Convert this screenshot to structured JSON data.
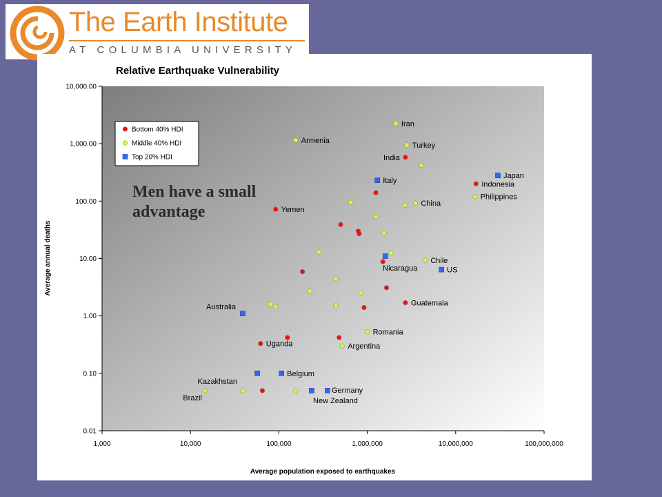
{
  "logo": {
    "name": "The Earth Institute",
    "subtitle": "AT COLUMBIA UNIVERSITY"
  },
  "overlay_note": "Men have a small\nadvantage",
  "colors": {
    "background": "#67679c",
    "brand_orange": "#e8892a",
    "bottom40": "#ee1111",
    "middle40": "#ccff33",
    "top20": "#3366ff"
  },
  "chart_data": {
    "type": "scatter",
    "title": "Relative Earthquake Vulnerability",
    "xlabel": "Average population exposed to earthquakes",
    "ylabel": "Average annual deaths",
    "xscale": "log",
    "yscale": "log",
    "xlim": [
      1000,
      100000000
    ],
    "ylim": [
      0.01,
      10000
    ],
    "x_ticks": [
      "1,000",
      "10,000",
      "100,000",
      "1,000,000",
      "10,000,000",
      "100,000,000"
    ],
    "y_ticks": [
      "10,000.00",
      "1,000.00",
      "100.00",
      "10.00",
      "1.00",
      "0.10",
      "0.01"
    ],
    "legend_position": "top-left",
    "series": [
      {
        "name": "Bottom 40% HDI",
        "marker": "circle",
        "color": "#ee1111",
        "points": [
          {
            "x": 2700000,
            "y": 580,
            "label": "India"
          },
          {
            "x": 17000000,
            "y": 200,
            "label": "Indonesia"
          },
          {
            "x": 1250000,
            "y": 140,
            "label": ""
          },
          {
            "x": 92000,
            "y": 72,
            "label": "Yemen"
          },
          {
            "x": 500000,
            "y": 39,
            "label": ""
          },
          {
            "x": 790000,
            "y": 30,
            "label": ""
          },
          {
            "x": 810000,
            "y": 27,
            "label": ""
          },
          {
            "x": 1500000,
            "y": 8.8,
            "label": "Nicaragua"
          },
          {
            "x": 185000,
            "y": 5.9,
            "label": ""
          },
          {
            "x": 1650000,
            "y": 3.1,
            "label": ""
          },
          {
            "x": 2700000,
            "y": 1.7,
            "label": "Guatemala"
          },
          {
            "x": 920000,
            "y": 1.4,
            "label": ""
          },
          {
            "x": 125000,
            "y": 0.42,
            "label": ""
          },
          {
            "x": 480000,
            "y": 0.42,
            "label": ""
          },
          {
            "x": 62000,
            "y": 0.33,
            "label": "Uganda"
          },
          {
            "x": 65000,
            "y": 0.05,
            "label": ""
          }
        ]
      },
      {
        "name": "Middle 40% HDI",
        "marker": "circle",
        "color": "#ccff33",
        "points": [
          {
            "x": 2100000,
            "y": 2250,
            "label": "Iran"
          },
          {
            "x": 155000,
            "y": 1150,
            "label": "Armenia"
          },
          {
            "x": 2800000,
            "y": 950,
            "label": "Turkey"
          },
          {
            "x": 4100000,
            "y": 420,
            "label": ""
          },
          {
            "x": 16500000,
            "y": 120,
            "label": "Philippines"
          },
          {
            "x": 650000,
            "y": 95,
            "label": ""
          },
          {
            "x": 3500000,
            "y": 93,
            "label": "China"
          },
          {
            "x": 2650000,
            "y": 85,
            "label": ""
          },
          {
            "x": 1250000,
            "y": 54,
            "label": ""
          },
          {
            "x": 1550000,
            "y": 28,
            "label": ""
          },
          {
            "x": 285000,
            "y": 13,
            "label": ""
          },
          {
            "x": 1850000,
            "y": 12.5,
            "label": ""
          },
          {
            "x": 4500000,
            "y": 9.3,
            "label": "Chile"
          },
          {
            "x": 440000,
            "y": 4.5,
            "label": ""
          },
          {
            "x": 225000,
            "y": 2.7,
            "label": ""
          },
          {
            "x": 850000,
            "y": 2.5,
            "label": ""
          },
          {
            "x": 80000,
            "y": 1.6,
            "label": ""
          },
          {
            "x": 92000,
            "y": 1.45,
            "label": ""
          },
          {
            "x": 440000,
            "y": 1.5,
            "label": ""
          },
          {
            "x": 1000000,
            "y": 0.53,
            "label": "Romania"
          },
          {
            "x": 520000,
            "y": 0.3,
            "label": "Argentina"
          },
          {
            "x": 14500,
            "y": 0.05,
            "label": "Brazil"
          },
          {
            "x": 39000,
            "y": 0.05,
            "label": "Kazakhstan"
          },
          {
            "x": 155000,
            "y": 0.05,
            "label": ""
          }
        ]
      },
      {
        "name": "Top 20% HDI",
        "marker": "square",
        "color": "#3366ff",
        "points": [
          {
            "x": 30000000,
            "y": 280,
            "label": "Japan"
          },
          {
            "x": 1300000,
            "y": 230,
            "label": "Italy"
          },
          {
            "x": 1600000,
            "y": 11,
            "label": ""
          },
          {
            "x": 6900000,
            "y": 6.4,
            "label": "US"
          },
          {
            "x": 39000,
            "y": 1.1,
            "label": "Australia"
          },
          {
            "x": 57000,
            "y": 0.1,
            "label": ""
          },
          {
            "x": 107000,
            "y": 0.1,
            "label": "Belgium"
          },
          {
            "x": 235000,
            "y": 0.05,
            "label": ""
          },
          {
            "x": 355000,
            "y": 0.05,
            "label": "Germany"
          }
        ]
      }
    ],
    "annotations": [
      "New Zealand"
    ]
  }
}
